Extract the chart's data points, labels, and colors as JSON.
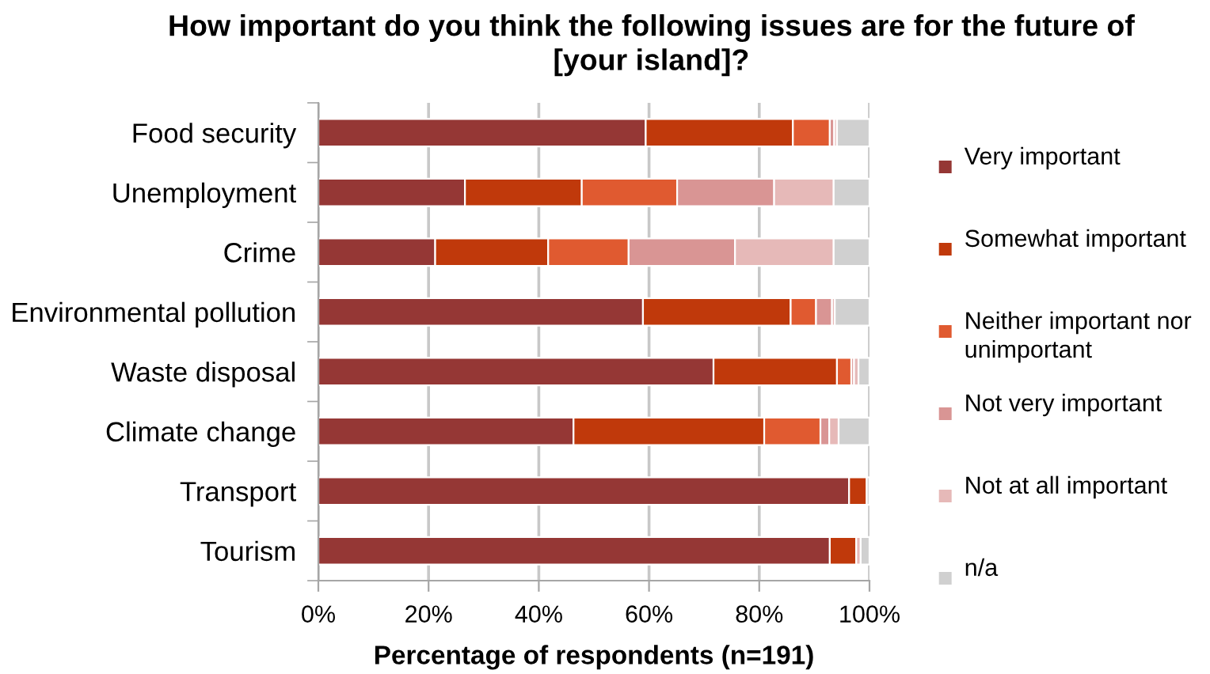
{
  "chart_data": {
    "type": "bar",
    "orientation": "horizontal",
    "stacked": true,
    "title": "How important do you think the following issues are for the future of [your island]?",
    "xlabel": "Percentage of respondents (n=191)",
    "categories": [
      "Food security",
      "Unemployment",
      "Crime",
      "Environmental pollution",
      "Waste disposal",
      "Climate change",
      "Transport",
      "Tourism"
    ],
    "series": [
      {
        "name": "Very important",
        "color": "#953735",
        "values": [
          59.4,
          26.6,
          21.2,
          58.9,
          71.7,
          46.3,
          96.3,
          92.8
        ]
      },
      {
        "name": "Somewhat important",
        "color": "#c0390b",
        "values": [
          26.7,
          21.2,
          20.5,
          26.8,
          22.4,
          34.6,
          3.2,
          4.8
        ]
      },
      {
        "name": "Neither important nor unimportant",
        "color": "#e05a30",
        "values": [
          6.7,
          17.3,
          14.6,
          4.6,
          2.6,
          10.2,
          null,
          null
        ]
      },
      {
        "name": "Not very important",
        "color": "#d99594",
        "values": [
          0.8,
          17.6,
          19.3,
          2.9,
          0.5,
          1.6,
          null,
          null
        ]
      },
      {
        "name": "Not at all important",
        "color": "#e6b9b8",
        "values": [
          0.5,
          10.8,
          17.9,
          0.5,
          0.8,
          1.7,
          null,
          0.8
        ]
      },
      {
        "name": "n/a",
        "color": "#d0d0d0",
        "values": [
          5.9,
          6.5,
          6.5,
          6.3,
          2.0,
          5.6,
          0.5,
          1.6
        ]
      }
    ],
    "xlim": [
      0,
      100
    ],
    "xticks": [
      {
        "value": 0,
        "label": "0%"
      },
      {
        "value": 20,
        "label": "20%"
      },
      {
        "value": 40,
        "label": "40%"
      },
      {
        "value": 60,
        "label": "60%"
      },
      {
        "value": 80,
        "label": "80%"
      },
      {
        "value": 100,
        "label": "100%"
      }
    ],
    "grid": "x",
    "legend": "right"
  }
}
